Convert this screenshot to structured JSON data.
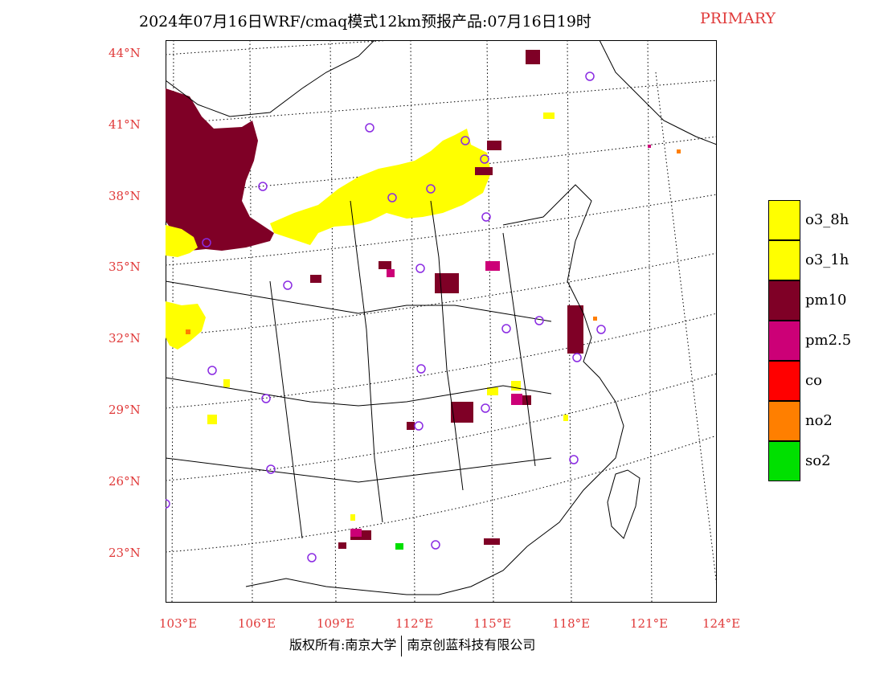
{
  "title": {
    "main": "2024年07月16日WRF/cmaq模式12km预报产品:07月16日19时",
    "tag": "PRIMARY"
  },
  "lat_labels": [
    "44°N",
    "41°N",
    "38°N",
    "35°N",
    "32°N",
    "29°N",
    "26°N",
    "23°N"
  ],
  "lon_labels": [
    "103°E",
    "106°E",
    "109°E",
    "112°E",
    "115°E",
    "118°E",
    "121°E",
    "124°E"
  ],
  "legend": [
    {
      "label": "o3_8h",
      "color": "#ffff00"
    },
    {
      "label": "o3_1h",
      "color": "#ffff00"
    },
    {
      "label": "pm10",
      "color": "#7f0026"
    },
    {
      "label": "pm2.5",
      "color": "#cc0077"
    },
    {
      "label": "co",
      "color": "#ff0000"
    },
    {
      "label": "no2",
      "color": "#ff7f00"
    },
    {
      "label": "so2",
      "color": "#00e000"
    }
  ],
  "footer": {
    "left": "版权所有:南京大学",
    "right": "南京创蓝科技有限公司"
  },
  "colors": {
    "o3": "#ffff00",
    "pm10": "#7f0026",
    "pm25": "#cc0077",
    "no2": "#ff7f00",
    "so2": "#00e000",
    "station": "#8a2be2",
    "label": "#e03a3a"
  }
}
